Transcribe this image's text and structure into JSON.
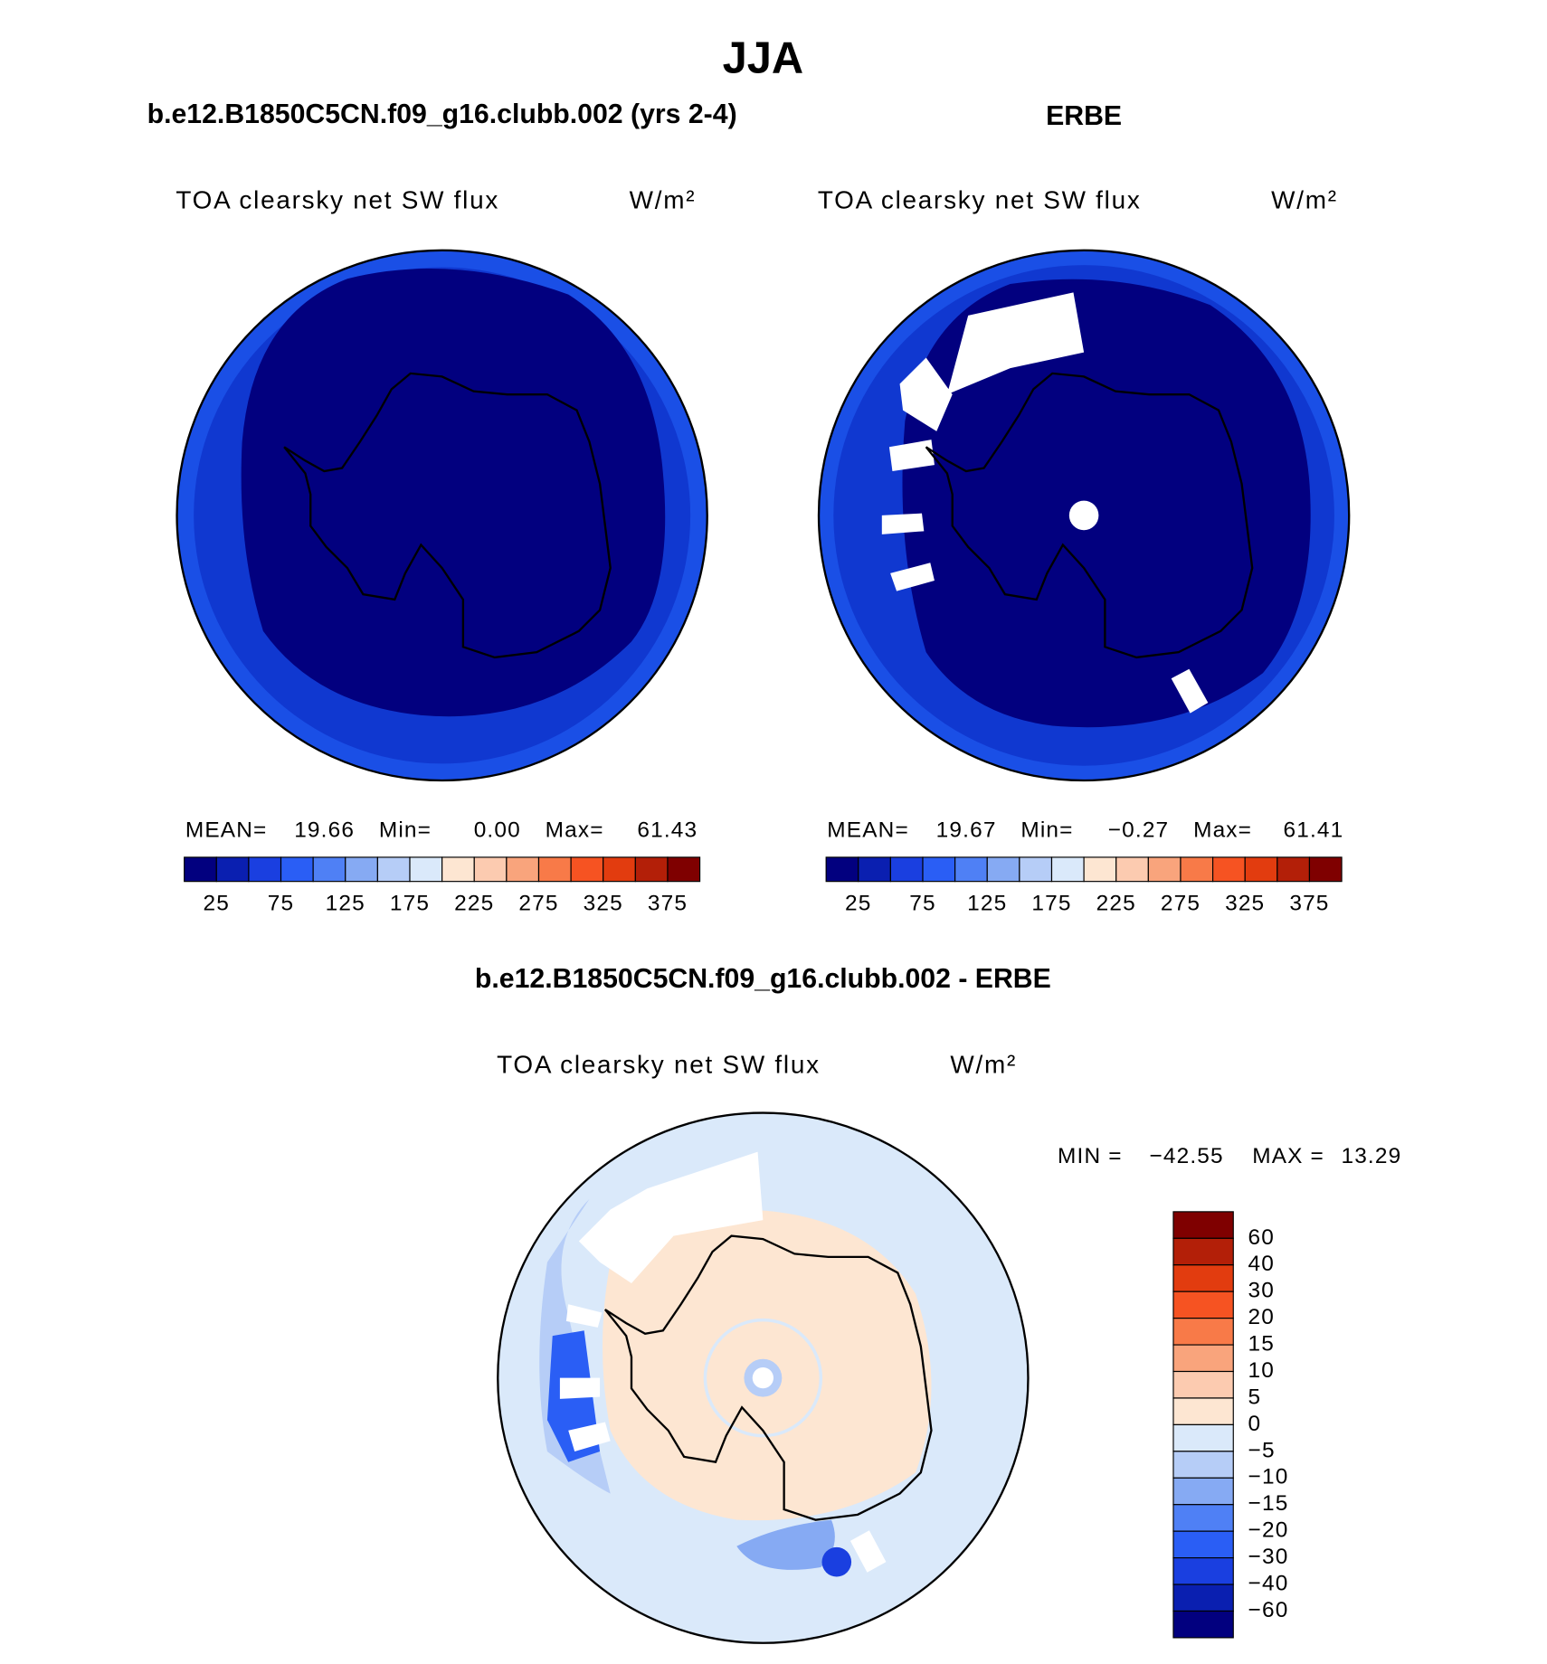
{
  "title": "JJA",
  "chart_data": [
    {
      "type": "contour-map",
      "title": "b.e12.B1850C5CN.f09_g16.clubb.002 (yrs 2-4)",
      "subtitle": "TOA clearsky net SW flux",
      "units": "W/m²",
      "stats": [
        {
          "label": "MEAN=",
          "value": "19.66"
        },
        {
          "label": "Min=",
          "value": "0.00"
        },
        {
          "label": "Max=",
          "value": "61.43"
        }
      ],
      "colorbar": {
        "orientation": "horizontal",
        "clim": [
          0,
          400
        ],
        "colors": [
          "#02007f",
          "#0a1fb0",
          "#1a3fe0",
          "#2a5ef5",
          "#4f80f5",
          "#86aaf3",
          "#b6cdf7",
          "#dae9fa",
          "#fde6d2",
          "#fccbb0",
          "#f9a47c",
          "#f87a48",
          "#f65322",
          "#e23c0f",
          "#b31f08",
          "#7f0000"
        ],
        "ticks": [
          25,
          75,
          125,
          175,
          225,
          275,
          325,
          375
        ]
      }
    },
    {
      "type": "contour-map",
      "title": "ERBE",
      "subtitle": "TOA clearsky net SW flux",
      "units": "W/m²",
      "stats": [
        {
          "label": "MEAN=",
          "value": "19.67"
        },
        {
          "label": "Min=",
          "value": "−0.27"
        },
        {
          "label": "Max=",
          "value": "61.41"
        }
      ],
      "colorbar": {
        "orientation": "horizontal",
        "clim": [
          0,
          400
        ],
        "colors": [
          "#02007f",
          "#0a1fb0",
          "#1a3fe0",
          "#2a5ef5",
          "#4f80f5",
          "#86aaf3",
          "#b6cdf7",
          "#dae9fa",
          "#fde6d2",
          "#fccbb0",
          "#f9a47c",
          "#f87a48",
          "#f65322",
          "#e23c0f",
          "#b31f08",
          "#7f0000"
        ],
        "ticks": [
          25,
          75,
          125,
          175,
          225,
          275,
          325,
          375
        ]
      }
    },
    {
      "type": "contour-map",
      "title": "b.e12.B1850C5CN.f09_g16.clubb.002 - ERBE",
      "subtitle": "TOA clearsky net SW flux",
      "units": "W/m²",
      "stats": [
        {
          "label": "MIN =",
          "value": "−42.55"
        },
        {
          "label": "MAX =",
          "value": "13.29"
        }
      ],
      "colorbar": {
        "orientation": "vertical",
        "colors": [
          "#7f0000",
          "#b31f08",
          "#e23c0f",
          "#f65322",
          "#f87a48",
          "#f9a47c",
          "#fccbb0",
          "#fde6d2",
          "#dae9fa",
          "#b6cdf7",
          "#86aaf3",
          "#4f80f5",
          "#2a5ef5",
          "#1a3fe0",
          "#0a1fb0",
          "#02007f"
        ],
        "ticks": [
          60,
          40,
          30,
          20,
          15,
          10,
          5,
          0,
          {
            "value": -5,
            "label": "−5"
          },
          {
            "value": -10,
            "label": "−10"
          },
          {
            "value": -15,
            "label": "−15"
          },
          {
            "value": -20,
            "label": "−20"
          },
          {
            "value": -30,
            "label": "−30"
          },
          {
            "value": -40,
            "label": "−40"
          },
          {
            "value": -60,
            "label": "−60"
          }
        ]
      }
    }
  ]
}
